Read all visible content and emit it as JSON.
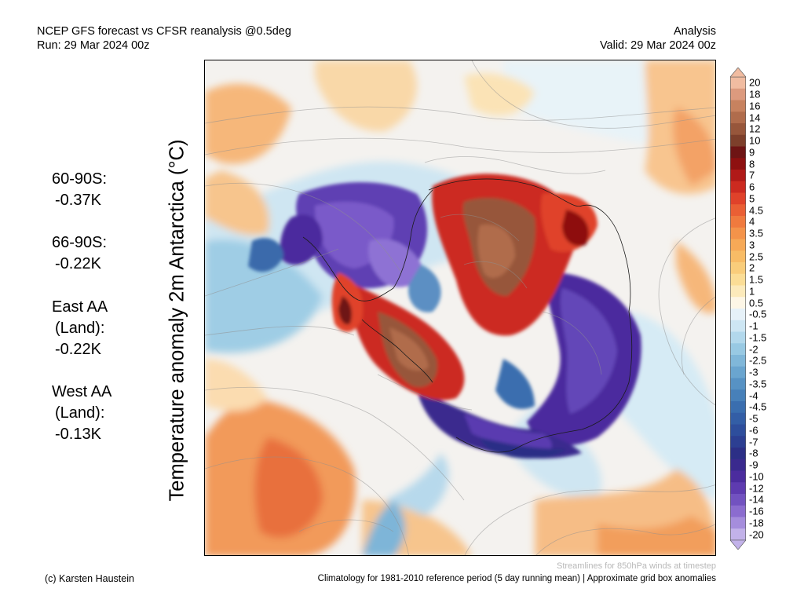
{
  "header": {
    "title": "NCEP GFS forecast vs CFSR reanalysis @0.5deg",
    "run": "Run: 29 Mar 2024 00z",
    "type": "Analysis",
    "valid": "Valid: 29 Mar 2024 00z"
  },
  "y_axis_title": "Temperature anomaly 2m Antarctica (°C)",
  "stats": [
    {
      "lines": [
        "60-90S:",
        "-0.37K"
      ]
    },
    {
      "lines": [
        "66-90S:",
        "-0.22K"
      ]
    },
    {
      "lines": [
        "East AA",
        "(Land):",
        "-0.22K"
      ]
    },
    {
      "lines": [
        "West AA",
        "(Land):",
        "-0.13K"
      ]
    }
  ],
  "colorbar": {
    "labels": [
      "20",
      "18",
      "16",
      "14",
      "12",
      "10",
      "9",
      "8",
      "7",
      "6",
      "5",
      "4.5",
      "4",
      "3.5",
      "3",
      "2.5",
      "2",
      "1.5",
      "1",
      "0.5",
      "-0.5",
      "-1",
      "-1.5",
      "-2",
      "-2.5",
      "-3",
      "-3.5",
      "-4",
      "-4.5",
      "-5",
      "-6",
      "-7",
      "-8",
      "-9",
      "-10",
      "-12",
      "-14",
      "-16",
      "-18",
      "-20"
    ],
    "colors": [
      "#f1bca1",
      "#dc9a7e",
      "#c7825f",
      "#b06c4c",
      "#97563b",
      "#7d3f2b",
      "#6e1414",
      "#8e1010",
      "#b01a18",
      "#cc2a20",
      "#e0422a",
      "#ea5f34",
      "#f07a3e",
      "#f4934a",
      "#f6a957",
      "#f8bc66",
      "#f9cd7b",
      "#fbdd96",
      "#fceabb",
      "#fdf6e6",
      "#e6f1f8",
      "#cde6f3",
      "#b2d8ec",
      "#98c9e3",
      "#80b7d9",
      "#6aa5cf",
      "#5792c4",
      "#4780b9",
      "#3a6eaf",
      "#335ea6",
      "#2e4e9c",
      "#2c3f92",
      "#2c2f86",
      "#3a2a8e",
      "#4b2c9e",
      "#5e3bb0",
      "#7252c0",
      "#8b6ccf",
      "#a58ddc",
      "#c2b2e9"
    ]
  },
  "streamline_note": "Streamlines for 850hPa winds at timestep",
  "footer": {
    "copyright": "(c) Karsten Haustein",
    "climatology": "Climatology for 1981-2010 reference period (5 day running mean) | Approximate grid box anomalies"
  }
}
